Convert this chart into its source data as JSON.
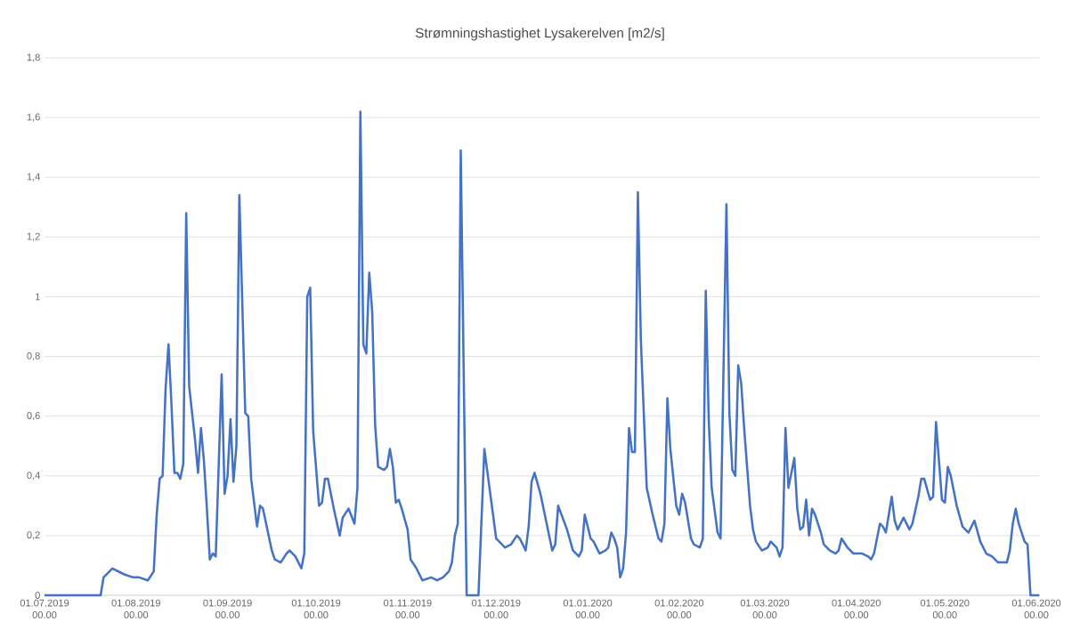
{
  "chart_data": {
    "type": "line",
    "title": "Strømningshastighet Lysakerelven [m2/s]",
    "color": "#4472c4",
    "grid": "y",
    "xlim": [
      "2019-07-01",
      "2020-06-02"
    ],
    "ylim": [
      0,
      1.8
    ],
    "xticks": [
      {
        "value": "2019-07-01",
        "label": "01.07.2019 00.00"
      },
      {
        "value": "2019-08-01",
        "label": "01.08.2019 00.00"
      },
      {
        "value": "2019-09-01",
        "label": "01.09.2019 00.00"
      },
      {
        "value": "2019-10-01",
        "label": "01.10.2019 00.00"
      },
      {
        "value": "2019-11-01",
        "label": "01.11.2019 00.00"
      },
      {
        "value": "2019-12-01",
        "label": "01.12.2019 00.00"
      },
      {
        "value": "2020-01-01",
        "label": "01.01.2020 00.00"
      },
      {
        "value": "2020-02-01",
        "label": "01.02.2020 00.00"
      },
      {
        "value": "2020-03-01",
        "label": "01.03.2020 00.00"
      },
      {
        "value": "2020-04-01",
        "label": "01.04.2020 00.00"
      },
      {
        "value": "2020-05-01",
        "label": "01.05.2020 00.00"
      },
      {
        "value": "2020-06-01",
        "label": "01.06.2020 00.00"
      }
    ],
    "yticks": [
      0,
      {
        "value": 0.2,
        "label": "0,2"
      },
      {
        "value": 0.4,
        "label": "0,4"
      },
      {
        "value": 0.6,
        "label": "0,6"
      },
      {
        "value": 0.8,
        "label": "0,8"
      },
      1,
      {
        "value": 1.2,
        "label": "1,2"
      },
      {
        "value": 1.4,
        "label": "1,4"
      },
      {
        "value": 1.6,
        "label": "1,6"
      },
      {
        "value": 1.8,
        "label": "1,8"
      }
    ],
    "x": [
      "2019-07-01",
      "2019-07-20",
      "2019-07-21",
      "2019-07-24",
      "2019-07-28",
      "2019-07-31",
      "2019-08-02",
      "2019-08-05",
      "2019-08-07",
      "2019-08-08",
      "2019-08-09",
      "2019-08-10",
      "2019-08-11",
      "2019-08-12",
      "2019-08-13",
      "2019-08-14",
      "2019-08-15",
      "2019-08-16",
      "2019-08-17",
      "2019-08-18",
      "2019-08-19",
      "2019-08-21",
      "2019-08-22",
      "2019-08-23",
      "2019-08-24",
      "2019-08-25",
      "2019-08-26",
      "2019-08-27",
      "2019-08-28",
      "2019-08-30",
      "2019-08-31",
      "2019-09-01",
      "2019-09-02",
      "2019-09-03",
      "2019-09-04",
      "2019-09-05",
      "2019-09-07",
      "2019-09-08",
      "2019-09-09",
      "2019-09-11",
      "2019-09-12",
      "2019-09-13",
      "2019-09-16",
      "2019-09-17",
      "2019-09-19",
      "2019-09-21",
      "2019-09-22",
      "2019-09-24",
      "2019-09-26",
      "2019-09-27",
      "2019-09-28",
      "2019-09-29",
      "2019-09-30",
      "2019-10-02",
      "2019-10-03",
      "2019-10-04",
      "2019-10-05",
      "2019-10-07",
      "2019-10-09",
      "2019-10-10",
      "2019-10-12",
      "2019-10-14",
      "2019-10-15",
      "2019-10-16",
      "2019-10-17",
      "2019-10-18",
      "2019-10-19",
      "2019-10-20",
      "2019-10-21",
      "2019-10-22",
      "2019-10-24",
      "2019-10-25",
      "2019-10-26",
      "2019-10-27",
      "2019-10-28",
      "2019-10-29",
      "2019-10-30",
      "2019-11-01",
      "2019-11-02",
      "2019-11-04",
      "2019-11-06",
      "2019-11-09",
      "2019-11-11",
      "2019-11-13",
      "2019-11-15",
      "2019-11-16",
      "2019-11-17",
      "2019-11-18",
      "2019-11-19",
      "2019-11-21",
      "2019-11-25",
      "2019-11-27",
      "2019-11-29",
      "2019-12-01",
      "2019-12-04",
      "2019-12-06",
      "2019-12-08",
      "2019-12-09",
      "2019-12-11",
      "2019-12-12",
      "2019-12-13",
      "2019-12-14",
      "2019-12-16",
      "2019-12-20",
      "2019-12-21",
      "2019-12-22",
      "2019-12-25",
      "2019-12-27",
      "2019-12-29",
      "2019-12-30",
      "2019-12-31",
      "2020-01-02",
      "2020-01-03",
      "2020-01-05",
      "2020-01-07",
      "2020-01-08",
      "2020-01-09",
      "2020-01-10",
      "2020-01-11",
      "2020-01-12",
      "2020-01-13",
      "2020-01-14",
      "2020-01-15",
      "2020-01-16",
      "2020-01-17",
      "2020-01-18",
      "2020-01-19",
      "2020-01-21",
      "2020-01-23",
      "2020-01-25",
      "2020-01-26",
      "2020-01-27",
      "2020-01-28",
      "2020-01-29",
      "2020-01-31",
      "2020-02-01",
      "2020-02-02",
      "2020-02-03",
      "2020-02-05",
      "2020-02-06",
      "2020-02-08",
      "2020-02-09",
      "2020-02-10",
      "2020-02-11",
      "2020-02-12",
      "2020-02-14",
      "2020-02-15",
      "2020-02-17",
      "2020-02-18",
      "2020-02-19",
      "2020-02-20",
      "2020-02-21",
      "2020-02-22",
      "2020-02-23",
      "2020-02-25",
      "2020-02-26",
      "2020-02-27",
      "2020-02-29",
      "2020-03-02",
      "2020-03-03",
      "2020-03-05",
      "2020-03-06",
      "2020-03-07",
      "2020-03-08",
      "2020-03-09",
      "2020-03-11",
      "2020-03-12",
      "2020-03-13",
      "2020-03-14",
      "2020-03-15",
      "2020-03-16",
      "2020-03-17",
      "2020-03-18",
      "2020-03-20",
      "2020-03-21",
      "2020-03-23",
      "2020-03-25",
      "2020-03-26",
      "2020-03-27",
      "2020-03-29",
      "2020-03-31",
      "2020-04-03",
      "2020-04-05",
      "2020-04-06",
      "2020-04-07",
      "2020-04-09",
      "2020-04-10",
      "2020-04-11",
      "2020-04-13",
      "2020-04-14",
      "2020-04-15",
      "2020-04-17",
      "2020-04-19",
      "2020-04-20",
      "2020-04-22",
      "2020-04-23",
      "2020-04-24",
      "2020-04-26",
      "2020-04-27",
      "2020-04-28",
      "2020-04-30",
      "2020-05-01",
      "2020-05-02",
      "2020-05-03",
      "2020-05-05",
      "2020-05-07",
      "2020-05-09",
      "2020-05-11",
      "2020-05-13",
      "2020-05-15",
      "2020-05-17",
      "2020-05-19",
      "2020-05-22",
      "2020-05-23",
      "2020-05-24",
      "2020-05-25",
      "2020-05-26",
      "2020-05-28",
      "2020-05-29",
      "2020-05-30",
      "2020-06-02"
    ],
    "values": [
      0,
      0,
      0.06,
      0.09,
      0.07,
      0.06,
      0.06,
      0.05,
      0.08,
      0.27,
      0.39,
      0.4,
      0.69,
      0.84,
      0.64,
      0.41,
      0.41,
      0.39,
      0.44,
      1.28,
      0.7,
      0.52,
      0.41,
      0.56,
      0.45,
      0.29,
      0.12,
      0.14,
      0.13,
      0.74,
      0.34,
      0.4,
      0.59,
      0.38,
      0.5,
      1.34,
      0.61,
      0.6,
      0.39,
      0.23,
      0.3,
      0.29,
      0.15,
      0.12,
      0.11,
      0.14,
      0.15,
      0.13,
      0.09,
      0.14,
      1.0,
      1.03,
      0.55,
      0.3,
      0.31,
      0.39,
      0.39,
      0.29,
      0.2,
      0.26,
      0.29,
      0.24,
      0.36,
      1.62,
      0.84,
      0.81,
      1.08,
      0.95,
      0.57,
      0.43,
      0.42,
      0.43,
      0.49,
      0.43,
      0.31,
      0.32,
      0.29,
      0.22,
      0.12,
      0.09,
      0.05,
      0.06,
      0.05,
      0.06,
      0.08,
      0.11,
      0.2,
      0.24,
      1.49,
      0,
      0,
      0.49,
      0.34,
      0.19,
      0.16,
      0.17,
      0.2,
      0.19,
      0.15,
      0.23,
      0.38,
      0.41,
      0.34,
      0.15,
      0.17,
      0.3,
      0.22,
      0.15,
      0.13,
      0.15,
      0.27,
      0.19,
      0.18,
      0.14,
      0.15,
      0.16,
      0.21,
      0.19,
      0.16,
      0.06,
      0.09,
      0.21,
      0.56,
      0.48,
      0.48,
      1.35,
      0.86,
      0.36,
      0.27,
      0.19,
      0.18,
      0.24,
      0.66,
      0.49,
      0.3,
      0.27,
      0.34,
      0.31,
      0.19,
      0.17,
      0.16,
      0.19,
      1.02,
      0.59,
      0.36,
      0.21,
      0.19,
      1.31,
      0.61,
      0.42,
      0.4,
      0.77,
      0.71,
      0.56,
      0.3,
      0.22,
      0.18,
      0.15,
      0.16,
      0.18,
      0.16,
      0.13,
      0.16,
      0.56,
      0.36,
      0.46,
      0.29,
      0.22,
      0.23,
      0.32,
      0.2,
      0.29,
      0.27,
      0.21,
      0.17,
      0.15,
      0.14,
      0.15,
      0.19,
      0.16,
      0.14,
      0.14,
      0.13,
      0.12,
      0.14,
      0.24,
      0.23,
      0.21,
      0.33,
      0.25,
      0.22,
      0.26,
      0.22,
      0.24,
      0.33,
      0.39,
      0.39,
      0.32,
      0.33,
      0.58,
      0.32,
      0.31,
      0.43,
      0.4,
      0.3,
      0.23,
      0.21,
      0.25,
      0.18,
      0.14,
      0.13,
      0.11,
      0.11,
      0.15,
      0.24,
      0.29,
      0.24,
      0.18,
      0.17,
      0,
      0
    ]
  }
}
